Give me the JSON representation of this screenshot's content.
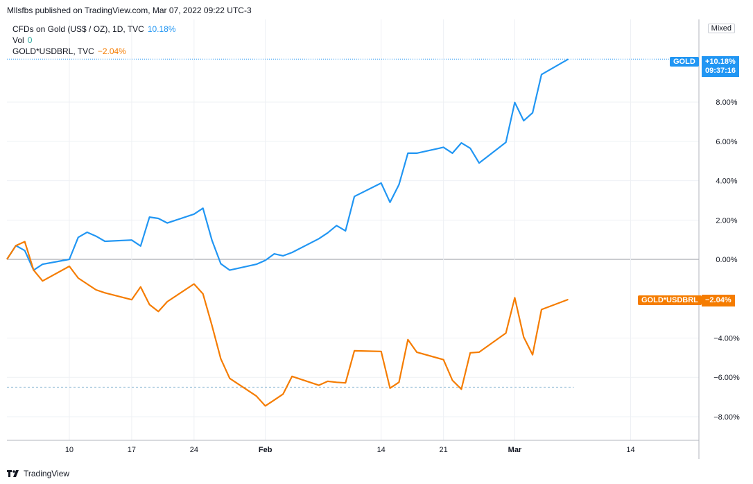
{
  "header": {
    "publisher_line": "Mllsfbs published on TradingView.com, Mar 07, 2022 09:22 UTC-3"
  },
  "legend": {
    "rows": [
      {
        "label": "CFDs on Gold (US$ / OZ), 1D, TVC",
        "value": "10.18%",
        "color": "#2196f3"
      },
      {
        "label": "Vol",
        "value": "0",
        "color": "#26a69a"
      },
      {
        "label": "GOLD*USDBRL, TVC",
        "value": "−2.04%",
        "color": "#f57c00"
      }
    ]
  },
  "scale_mode": "Mixed",
  "price_labels": {
    "gold": {
      "name": "GOLD",
      "value": "+10.18%",
      "time": "09:37:16",
      "color": "#2196f3"
    },
    "goldbrl": {
      "name": "GOLD*USDBRL",
      "value": "−2.04%",
      "color": "#f57c00"
    }
  },
  "footer": {
    "brand": "TradingView"
  },
  "chart_data": {
    "type": "line",
    "x_ticks": [
      "10",
      "17",
      "24",
      "Feb",
      "14",
      "21",
      "Mar",
      "14"
    ],
    "y_ticks": [
      "8.00%",
      "6.00%",
      "4.00%",
      "2.00%",
      "0.00%",
      "−4.00%",
      "−6.00%",
      "−8.00%"
    ],
    "ylim": [
      -9.2,
      12.2
    ],
    "grid": true,
    "colors": {
      "gold": "#2196f3",
      "goldbrl": "#f57c00",
      "axis_text": "#131722",
      "grid": "#eef0f4"
    },
    "series": [
      {
        "name": "CFDs on Gold (US$ / OZ), 1D, TVC",
        "color": "#2196f3",
        "dates": [
          "2022-01-03",
          "2022-01-04",
          "2022-01-05",
          "2022-01-06",
          "2022-01-07",
          "2022-01-10",
          "2022-01-11",
          "2022-01-12",
          "2022-01-13",
          "2022-01-14",
          "2022-01-17",
          "2022-01-18",
          "2022-01-19",
          "2022-01-20",
          "2022-01-21",
          "2022-01-24",
          "2022-01-25",
          "2022-01-26",
          "2022-01-27",
          "2022-01-28",
          "2022-01-31",
          "2022-02-01",
          "2022-02-02",
          "2022-02-03",
          "2022-02-04",
          "2022-02-07",
          "2022-02-08",
          "2022-02-09",
          "2022-02-10",
          "2022-02-11",
          "2022-02-14",
          "2022-02-15",
          "2022-02-16",
          "2022-02-17",
          "2022-02-18",
          "2022-02-21",
          "2022-02-22",
          "2022-02-23",
          "2022-02-24",
          "2022-02-25",
          "2022-02-28",
          "2022-03-01",
          "2022-03-02",
          "2022-03-03",
          "2022-03-04",
          "2022-03-07"
        ],
        "values": [
          0.0,
          0.7,
          0.45,
          -0.55,
          -0.25,
          0.0,
          1.12,
          1.38,
          1.18,
          0.92,
          0.98,
          0.68,
          2.15,
          2.08,
          1.85,
          2.3,
          2.6,
          0.98,
          -0.22,
          -0.55,
          -0.25,
          -0.05,
          0.28,
          0.18,
          0.35,
          1.05,
          1.35,
          1.72,
          1.45,
          3.2,
          3.88,
          2.9,
          3.8,
          5.4,
          5.4,
          5.7,
          5.4,
          5.92,
          5.65,
          4.9,
          5.95,
          7.98,
          7.05,
          7.45,
          9.4,
          10.18
        ]
      },
      {
        "name": "GOLD*USDBRL, TVC",
        "color": "#f57c00",
        "dates": [
          "2022-01-03",
          "2022-01-04",
          "2022-01-05",
          "2022-01-06",
          "2022-01-07",
          "2022-01-10",
          "2022-01-11",
          "2022-01-12",
          "2022-01-13",
          "2022-01-14",
          "2022-01-17",
          "2022-01-18",
          "2022-01-19",
          "2022-01-20",
          "2022-01-21",
          "2022-01-24",
          "2022-01-25",
          "2022-01-26",
          "2022-01-27",
          "2022-01-28",
          "2022-01-31",
          "2022-02-01",
          "2022-02-02",
          "2022-02-03",
          "2022-02-04",
          "2022-02-07",
          "2022-02-08",
          "2022-02-09",
          "2022-02-10",
          "2022-02-11",
          "2022-02-14",
          "2022-02-15",
          "2022-02-16",
          "2022-02-17",
          "2022-02-18",
          "2022-02-21",
          "2022-02-22",
          "2022-02-23",
          "2022-02-24",
          "2022-02-25",
          "2022-02-28",
          "2022-03-01",
          "2022-03-02",
          "2022-03-03",
          "2022-03-04",
          "2022-03-07"
        ],
        "values": [
          0.0,
          0.7,
          0.9,
          -0.55,
          -1.1,
          -0.35,
          -0.95,
          -1.25,
          -1.55,
          -1.7,
          -2.05,
          -1.4,
          -2.3,
          -2.65,
          -2.15,
          -1.25,
          -1.75,
          -3.35,
          -5.05,
          -6.05,
          -6.95,
          -7.45,
          -7.15,
          -6.85,
          -5.95,
          -6.4,
          -6.2,
          -6.25,
          -6.28,
          -4.65,
          -4.68,
          -6.55,
          -6.25,
          -4.08,
          -4.72,
          -5.1,
          -6.15,
          -6.6,
          -4.75,
          -4.72,
          -3.75,
          -1.95,
          -3.95,
          -4.85,
          -2.55,
          -2.04
        ]
      }
    ]
  }
}
